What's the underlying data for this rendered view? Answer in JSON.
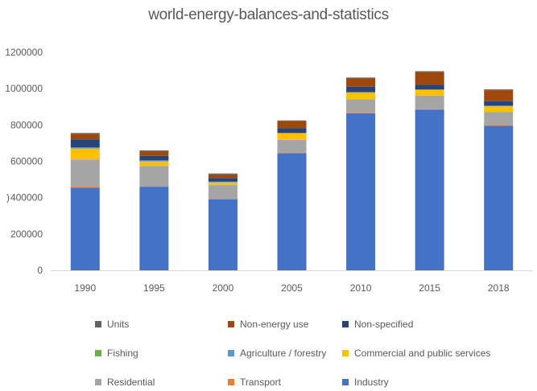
{
  "chart_data": {
    "type": "bar",
    "stacked": true,
    "title": "world-energy-balances-and-statistics",
    "xlabel": "",
    "ylabel": ")",
    "ylim": [
      0,
      1200000
    ],
    "yticks": [
      0,
      200000,
      400000,
      600000,
      800000,
      1000000,
      1200000
    ],
    "ytick_labels": [
      "0",
      "200000",
      "400000",
      "600000",
      "800000",
      "1000000",
      "1200000"
    ],
    "grid": false,
    "legend_position": "bottom",
    "categories": [
      "1990",
      "1995",
      "2000",
      "2005",
      "2010",
      "2015",
      "2018"
    ],
    "series": [
      {
        "name": "Industry",
        "color": "#4472C4",
        "values": [
          455000,
          460000,
          390000,
          645000,
          865000,
          885000,
          795000
        ]
      },
      {
        "name": "Transport",
        "color": "#ED7D31",
        "values": [
          5000,
          4000,
          4000,
          3000,
          2000,
          2000,
          2000
        ]
      },
      {
        "name": "Residential",
        "color": "#A5A5A5",
        "values": [
          150000,
          110000,
          75000,
          70000,
          75000,
          75000,
          75000
        ]
      },
      {
        "name": "Commercial and public services",
        "color": "#FFC000",
        "values": [
          60000,
          25000,
          15000,
          35000,
          35000,
          30000,
          30000
        ]
      },
      {
        "name": "Agriculture / forestry",
        "color": "#5B9BD5",
        "values": [
          5000,
          5000,
          3000,
          3000,
          3000,
          3000,
          3000
        ]
      },
      {
        "name": "Fishing",
        "color": "#70AD47",
        "values": [
          1000,
          1000,
          1000,
          1000,
          1000,
          1000,
          1000
        ]
      },
      {
        "name": "Non-specified",
        "color": "#264478",
        "values": [
          45000,
          25000,
          20000,
          25000,
          30000,
          25000,
          25000
        ]
      },
      {
        "name": "Non-energy use",
        "color": "#9E480E",
        "values": [
          30000,
          25000,
          20000,
          40000,
          45000,
          70000,
          60000
        ]
      },
      {
        "name": "Units",
        "color": "#636363",
        "values": [
          5000,
          5000,
          5000,
          3000,
          5000,
          5000,
          5000
        ]
      }
    ],
    "legend_order": [
      "Units",
      "Non-energy use",
      "Non-specified",
      "Fishing",
      "Agriculture / forestry",
      "Commercial and public services",
      "Residential",
      "Transport",
      "Industry"
    ]
  }
}
